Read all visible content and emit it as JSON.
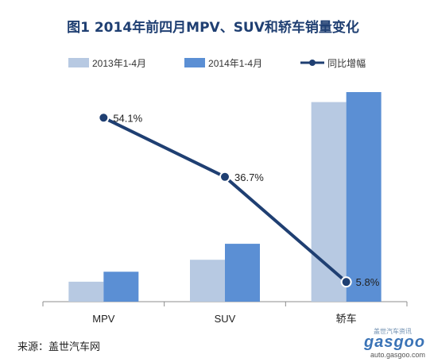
{
  "chart_data": {
    "type": "bar",
    "title": "图1   2014年前四月MPV、SUV和轿车销量变化",
    "categories": [
      "MPV",
      "SUV",
      "轿车"
    ],
    "series": [
      {
        "name": "2013年1-4月",
        "type": "bar",
        "color": "#b7c9e2",
        "values": [
          10,
          21,
          100
        ]
      },
      {
        "name": "2014年1-4月",
        "type": "bar",
        "color": "#5b8fd4",
        "values": [
          15,
          29,
          105
        ]
      },
      {
        "name": "同比增幅",
        "type": "line",
        "color": "#1f3f72",
        "values": [
          54.1,
          36.7,
          5.8
        ],
        "labels": [
          "54.1%",
          "36.7%",
          "5.8%"
        ]
      }
    ],
    "ylim_bars": [
      0,
      105
    ],
    "ylim_line": [
      0,
      60
    ],
    "legend_position": "top",
    "grid": false
  },
  "source": "来源：盖世汽车网",
  "watermark": {
    "top": "盖世汽车资讯",
    "main": "gasgoo",
    "sub": "auto.gasgoo.com"
  }
}
